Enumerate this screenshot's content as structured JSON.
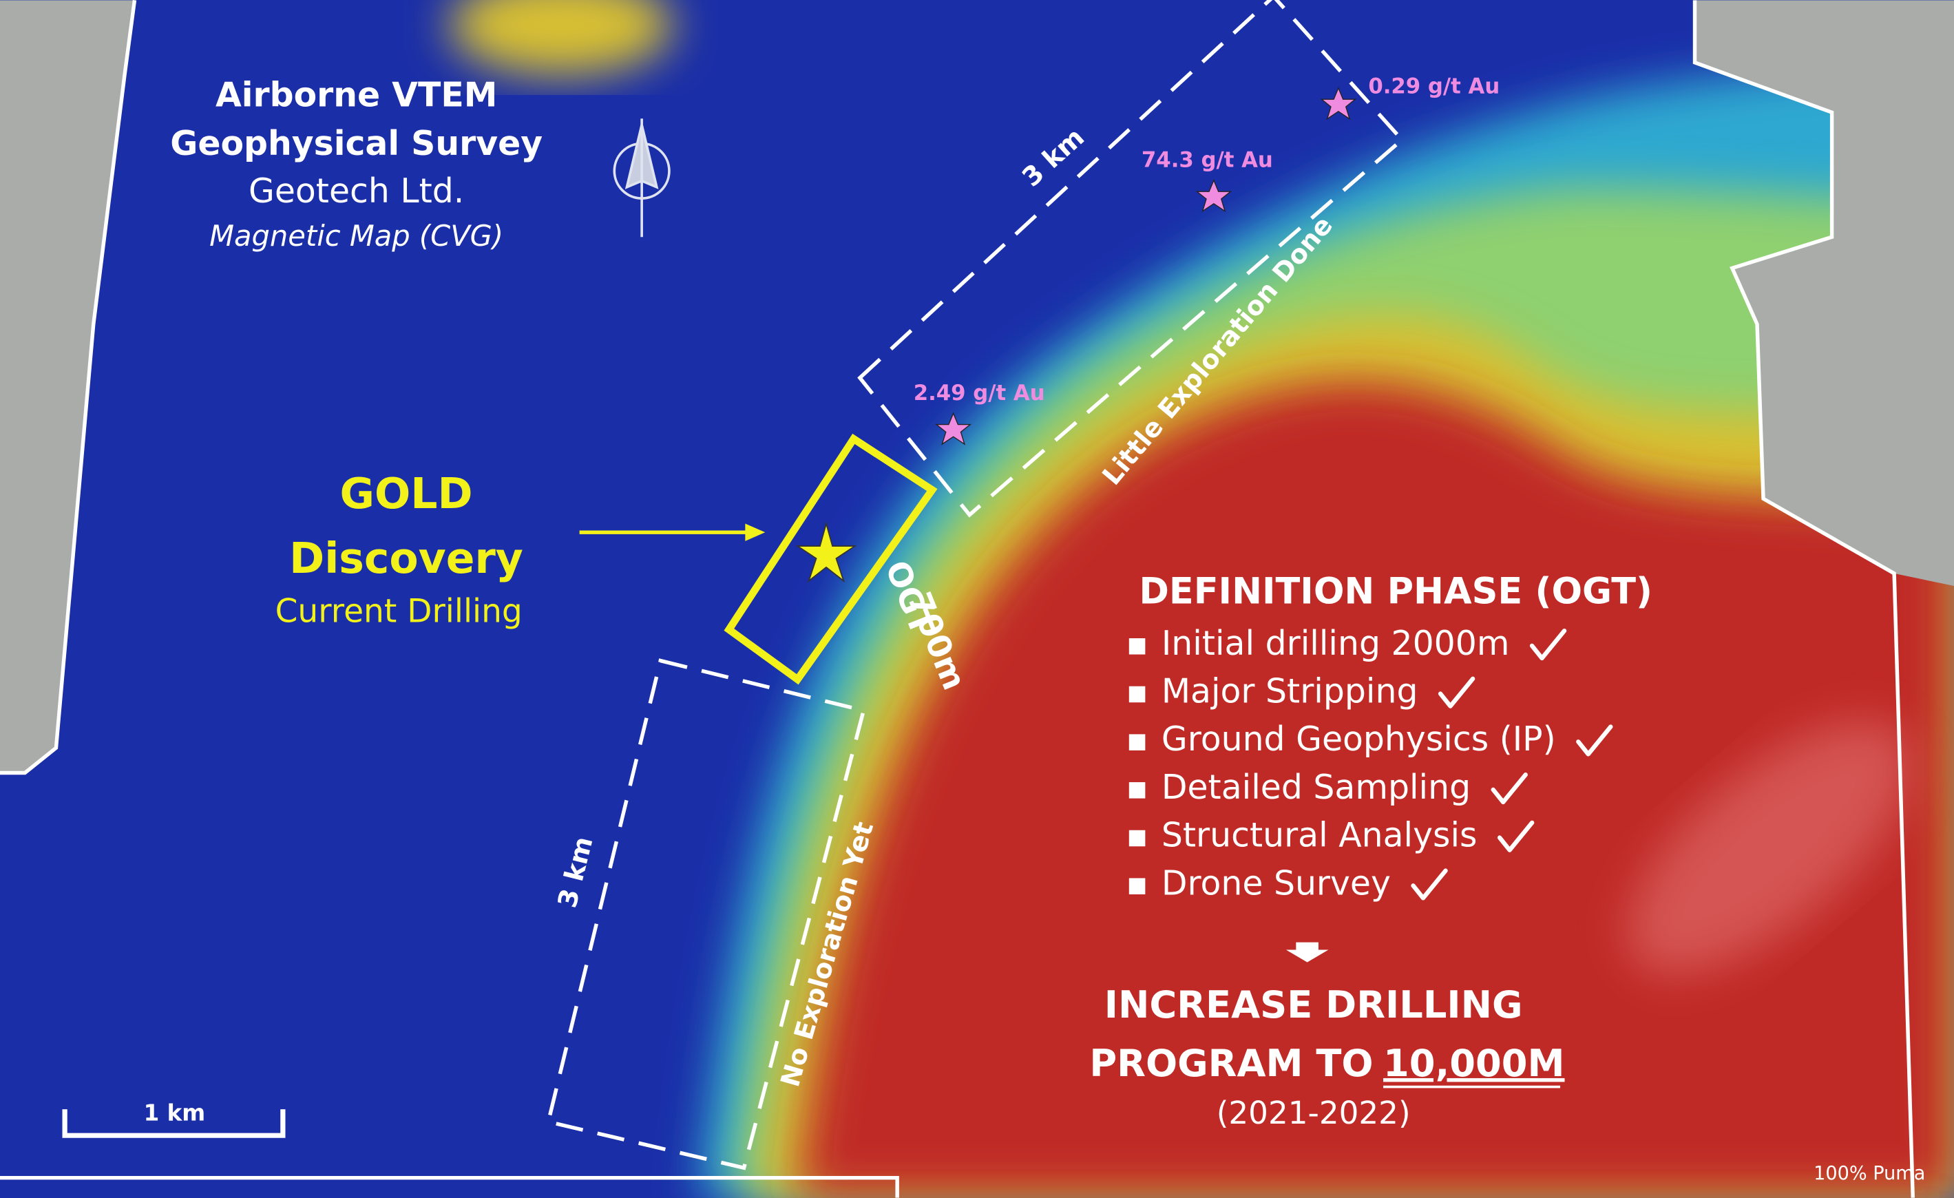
{
  "survey": {
    "lines": [
      "Airborne VTEM",
      "Geophysical Survey",
      "Geotech Ltd.",
      "Magnetic Map (CVG)"
    ]
  },
  "discovery": {
    "lines": [
      "GOLD",
      "Discovery",
      "Current Drilling"
    ]
  },
  "samples": [
    "0.29 g/t Au",
    "74.3 g/t Au",
    "2.49 g/t Au"
  ],
  "zones": [
    {
      "length": "3 km",
      "label": "Little Exploration Done"
    },
    {
      "length": "3 km",
      "label": "No Exploration Yet"
    }
  ],
  "target": {
    "name": "OGT",
    "length": "700m"
  },
  "definition_phase": {
    "title": "DEFINITION PHASE (OGT)",
    "items": [
      "Initial drilling 2000m",
      "Major Stripping",
      "Ground Geophysics (IP)",
      "Detailed Sampling",
      "Structural Analysis",
      "Drone Survey"
    ]
  },
  "plan": {
    "line1": "INCREASE DRILLING",
    "line2": "PROGRAM TO",
    "highlight": "10,000M",
    "years": "(2021-2022)"
  },
  "scale_bar": "1 km",
  "ownership": "100% Puma"
}
